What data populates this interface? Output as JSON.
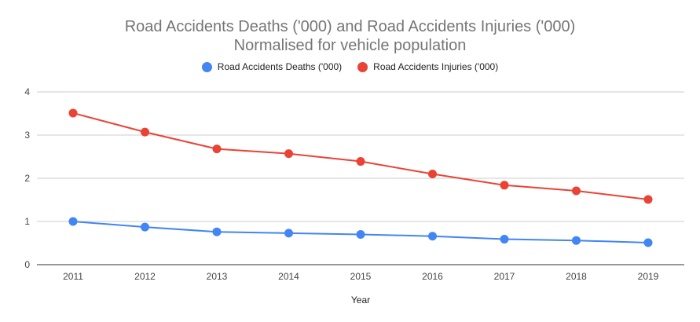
{
  "chart_data": {
    "type": "line",
    "title": "Road Accidents Deaths ('000) and Road Accidents Injuries ('000)",
    "subtitle": "Normalised for vehicle population",
    "xlabel": "Year",
    "ylabel": "",
    "categories": [
      "2011",
      "2012",
      "2013",
      "2014",
      "2015",
      "2016",
      "2017",
      "2018",
      "2019"
    ],
    "ylim": [
      0,
      4
    ],
    "yticks": [
      "0",
      "1",
      "2",
      "3",
      "4"
    ],
    "grid": true,
    "legend_position": "top",
    "series": [
      {
        "name": "Road Accidents Deaths ('000)",
        "color": "#4285f4",
        "values": [
          1.0,
          0.87,
          0.76,
          0.73,
          0.7,
          0.66,
          0.59,
          0.56,
          0.51
        ]
      },
      {
        "name": "Road Accidents Injuries ('000)",
        "color": "#ea4335",
        "values": [
          3.51,
          3.07,
          2.68,
          2.57,
          2.39,
          2.1,
          1.84,
          1.71,
          1.51
        ]
      }
    ]
  }
}
